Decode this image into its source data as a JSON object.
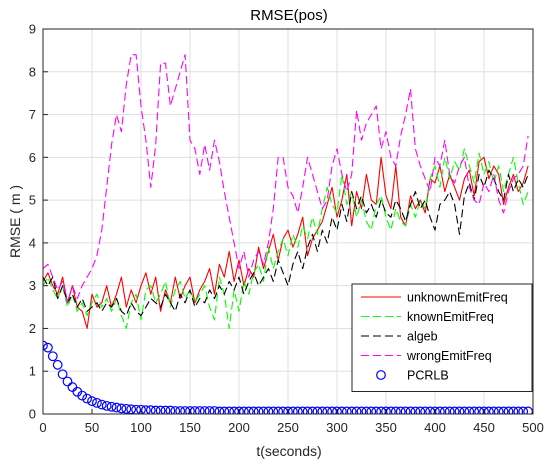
{
  "chart_data": {
    "type": "line",
    "title": "RMSE(pos)",
    "xlabel": "t(seconds)",
    "ylabel": "RMSE ( m )",
    "xlim": [
      0,
      500
    ],
    "ylim": [
      0,
      9
    ],
    "xticks": [
      0,
      50,
      100,
      150,
      200,
      250,
      300,
      350,
      400,
      450,
      500
    ],
    "yticks": [
      0,
      1,
      2,
      3,
      4,
      5,
      6,
      7,
      8,
      9
    ],
    "grid": true,
    "legend_position": "bottom-right",
    "series": [
      {
        "name": "unknownEmitFreq",
        "color": "#ff0000",
        "style": "solid",
        "x": [
          0,
          5,
          10,
          15,
          20,
          25,
          30,
          35,
          40,
          45,
          50,
          55,
          60,
          65,
          70,
          75,
          80,
          85,
          90,
          95,
          100,
          105,
          110,
          115,
          120,
          125,
          130,
          135,
          140,
          145,
          150,
          155,
          160,
          165,
          170,
          175,
          180,
          185,
          190,
          195,
          200,
          205,
          210,
          215,
          220,
          225,
          230,
          235,
          240,
          245,
          250,
          255,
          260,
          265,
          270,
          275,
          280,
          285,
          290,
          295,
          300,
          305,
          310,
          315,
          320,
          325,
          330,
          335,
          340,
          345,
          350,
          355,
          360,
          365,
          370,
          375,
          380,
          385,
          390,
          395,
          400,
          405,
          410,
          415,
          420,
          425,
          430,
          435,
          440,
          445,
          450,
          455,
          460,
          465,
          470,
          475,
          480,
          485,
          490,
          495
        ],
        "y": [
          3.1,
          3.3,
          3.0,
          2.8,
          3.2,
          2.6,
          3.0,
          2.5,
          2.4,
          2.0,
          2.8,
          2.5,
          2.6,
          3.0,
          2.5,
          2.8,
          3.2,
          2.5,
          2.9,
          2.6,
          3.0,
          3.3,
          2.8,
          3.2,
          2.4,
          2.9,
          2.6,
          3.2,
          2.7,
          3.0,
          3.2,
          2.6,
          2.9,
          3.1,
          3.4,
          2.8,
          3.5,
          3.2,
          3.8,
          3.1,
          3.6,
          3.0,
          3.4,
          3.2,
          3.9,
          3.4,
          3.8,
          4.2,
          3.6,
          4.1,
          4.3,
          3.9,
          4.2,
          4.6,
          3.7,
          4.1,
          4.3,
          4.5,
          4.9,
          5.3,
          4.6,
          5.0,
          5.6,
          4.4,
          5.2,
          4.8,
          5.6,
          5.0,
          4.9,
          6.0,
          5.1,
          4.8,
          5.8,
          4.6,
          4.4,
          5.1,
          4.8,
          5.0,
          4.7,
          5.5,
          5.4,
          5.8,
          5.2,
          5.6,
          5.3,
          5.0,
          5.5,
          5.7,
          5.1,
          5.9,
          6.0,
          5.5,
          5.8,
          5.6,
          4.9,
          5.3,
          5.6,
          5.2,
          5.4,
          5.8
        ]
      },
      {
        "name": "knownEmitFreq",
        "color": "#00ff00",
        "style": "dashed",
        "x": [
          0,
          5,
          10,
          15,
          20,
          25,
          30,
          35,
          40,
          45,
          50,
          55,
          60,
          65,
          70,
          75,
          80,
          85,
          90,
          95,
          100,
          105,
          110,
          115,
          120,
          125,
          130,
          135,
          140,
          145,
          150,
          155,
          160,
          165,
          170,
          175,
          180,
          185,
          190,
          195,
          200,
          205,
          210,
          215,
          220,
          225,
          230,
          235,
          240,
          245,
          250,
          255,
          260,
          265,
          270,
          275,
          280,
          285,
          290,
          295,
          300,
          305,
          310,
          315,
          320,
          325,
          330,
          335,
          340,
          345,
          350,
          355,
          360,
          365,
          370,
          375,
          380,
          385,
          390,
          395,
          400,
          405,
          410,
          415,
          420,
          425,
          430,
          435,
          440,
          445,
          450,
          455,
          460,
          465,
          470,
          475,
          480,
          485,
          490,
          495
        ],
        "y": [
          3.0,
          3.2,
          2.9,
          2.7,
          3.0,
          2.5,
          2.8,
          2.4,
          2.6,
          2.3,
          2.6,
          2.8,
          2.5,
          2.7,
          2.4,
          2.7,
          2.3,
          2.0,
          2.6,
          2.8,
          2.2,
          2.9,
          3.0,
          2.6,
          2.8,
          3.1,
          2.5,
          2.9,
          3.1,
          2.7,
          2.9,
          2.6,
          2.8,
          3.0,
          2.5,
          2.2,
          3.2,
          2.8,
          2.0,
          2.9,
          2.4,
          3.1,
          2.8,
          3.3,
          3.5,
          3.1,
          3.9,
          3.4,
          3.8,
          4.1,
          3.7,
          4.2,
          3.9,
          4.4,
          4.1,
          4.6,
          4.2,
          4.8,
          5.3,
          4.9,
          4.7,
          5.6,
          4.9,
          5.2,
          4.6,
          5.0,
          4.5,
          4.3,
          4.9,
          5.1,
          4.6,
          4.3,
          4.8,
          4.5,
          4.4,
          4.9,
          4.6,
          5.0,
          4.8,
          5.5,
          5.8,
          5.3,
          6.0,
          5.5,
          5.9,
          5.7,
          6.2,
          5.8,
          5.4,
          6.1,
          5.6,
          5.9,
          5.4,
          5.8,
          5.2,
          5.6,
          6.0,
          5.4,
          4.9,
          5.2
        ]
      },
      {
        "name": "algeb",
        "color": "#000000",
        "style": "dashed",
        "x": [
          0,
          5,
          10,
          15,
          20,
          25,
          30,
          35,
          40,
          45,
          50,
          55,
          60,
          65,
          70,
          75,
          80,
          85,
          90,
          95,
          100,
          105,
          110,
          115,
          120,
          125,
          130,
          135,
          140,
          145,
          150,
          155,
          160,
          165,
          170,
          175,
          180,
          185,
          190,
          195,
          200,
          205,
          210,
          215,
          220,
          225,
          230,
          235,
          240,
          245,
          250,
          255,
          260,
          265,
          270,
          275,
          280,
          285,
          290,
          295,
          300,
          305,
          310,
          315,
          320,
          325,
          330,
          335,
          340,
          345,
          350,
          355,
          360,
          365,
          370,
          375,
          380,
          385,
          390,
          395,
          400,
          405,
          410,
          415,
          420,
          425,
          430,
          435,
          440,
          445,
          450,
          455,
          460,
          465,
          470,
          475,
          480,
          485,
          490,
          495
        ],
        "y": [
          3.2,
          3.0,
          3.2,
          2.7,
          3.0,
          2.6,
          2.8,
          2.5,
          2.7,
          2.4,
          2.5,
          2.6,
          2.4,
          2.6,
          2.5,
          2.7,
          2.4,
          2.3,
          2.6,
          2.4,
          2.3,
          2.5,
          2.7,
          2.6,
          2.5,
          2.8,
          2.6,
          2.4,
          2.8,
          2.6,
          2.9,
          2.5,
          2.7,
          2.6,
          2.9,
          2.7,
          3.0,
          2.8,
          3.1,
          2.9,
          3.2,
          2.8,
          3.1,
          3.3,
          3.0,
          3.2,
          3.4,
          3.1,
          3.6,
          3.3,
          3.0,
          3.5,
          3.8,
          3.4,
          3.9,
          4.2,
          3.8,
          4.3,
          4.0,
          4.6,
          4.3,
          4.9,
          4.5,
          5.2,
          4.8,
          5.1,
          4.7,
          4.9,
          4.6,
          5.0,
          4.7,
          4.6,
          5.0,
          4.8,
          4.5,
          4.9,
          5.2,
          4.8,
          5.0,
          4.6,
          4.3,
          4.9,
          5.0,
          5.2,
          4.9,
          4.2,
          5.1,
          5.4,
          5.0,
          5.6,
          5.3,
          5.7,
          5.5,
          5.2,
          5.0,
          5.6,
          5.2,
          5.5,
          5.3,
          5.6
        ]
      },
      {
        "name": "wrongEmitFreq",
        "color": "#ff00ff",
        "style": "dashed",
        "x": [
          0,
          5,
          10,
          15,
          20,
          25,
          30,
          35,
          40,
          45,
          50,
          55,
          60,
          65,
          70,
          75,
          80,
          85,
          90,
          95,
          100,
          105,
          110,
          115,
          120,
          125,
          130,
          135,
          140,
          145,
          150,
          155,
          160,
          165,
          170,
          175,
          180,
          185,
          190,
          195,
          200,
          205,
          210,
          215,
          220,
          225,
          230,
          235,
          240,
          245,
          250,
          255,
          260,
          265,
          270,
          275,
          280,
          285,
          290,
          295,
          300,
          305,
          310,
          315,
          320,
          325,
          330,
          335,
          340,
          345,
          350,
          355,
          360,
          365,
          370,
          375,
          380,
          385,
          390,
          395,
          400,
          405,
          410,
          415,
          420,
          425,
          430,
          435,
          440,
          445,
          450,
          455,
          460,
          465,
          470,
          475,
          480,
          485,
          490,
          495
        ],
        "y": [
          3.4,
          3.5,
          3.2,
          2.9,
          3.1,
          2.6,
          3.0,
          2.7,
          3.0,
          3.2,
          3.4,
          3.7,
          4.3,
          5.3,
          6.3,
          7.0,
          6.6,
          7.7,
          8.4,
          8.4,
          7.2,
          6.4,
          5.3,
          6.3,
          8.2,
          8.2,
          7.2,
          7.6,
          8.0,
          8.4,
          6.4,
          6.2,
          5.6,
          6.3,
          5.7,
          6.4,
          5.9,
          5.2,
          4.6,
          4.0,
          3.4,
          3.8,
          3.2,
          3.6,
          3.8,
          3.5,
          4.0,
          4.8,
          6.0,
          6.0,
          5.3,
          5.1,
          4.7,
          5.3,
          6.0,
          5.6,
          5.2,
          4.8,
          5.0,
          5.8,
          6.2,
          5.6,
          5.2,
          5.6,
          7.1,
          6.4,
          6.8,
          7.0,
          7.2,
          6.2,
          6.6,
          6.0,
          5.8,
          6.5,
          7.0,
          7.6,
          6.2,
          5.8,
          5.5,
          5.2,
          6.0,
          5.8,
          6.4,
          5.6,
          5.4,
          5.8,
          6.0,
          5.3,
          5.0,
          4.9,
          5.4,
          5.2,
          5.6,
          5.0,
          4.7,
          5.2,
          5.5,
          5.6,
          5.8,
          6.5
        ]
      },
      {
        "name": "PCRLB",
        "color": "#0000ff",
        "style": "markers",
        "marker": "circle",
        "x": [
          0,
          5,
          10,
          15,
          20,
          25,
          30,
          35,
          40,
          45,
          50,
          55,
          60,
          65,
          70,
          75,
          80,
          85,
          90,
          95,
          100,
          105,
          110,
          115,
          120,
          125,
          130,
          135,
          140,
          145,
          150,
          155,
          160,
          165,
          170,
          175,
          180,
          185,
          190,
          195,
          200,
          205,
          210,
          215,
          220,
          225,
          230,
          235,
          240,
          245,
          250,
          255,
          260,
          265,
          270,
          275,
          280,
          285,
          290,
          295,
          300,
          305,
          310,
          315,
          320,
          325,
          330,
          335,
          340,
          345,
          350,
          355,
          360,
          365,
          370,
          375,
          380,
          385,
          390,
          395,
          400,
          405,
          410,
          415,
          420,
          425,
          430,
          435,
          440,
          445,
          450,
          455,
          460,
          465,
          470,
          475,
          480,
          485,
          490,
          495
        ],
        "y": [
          1.6,
          1.55,
          1.35,
          1.15,
          0.93,
          0.76,
          0.63,
          0.52,
          0.43,
          0.36,
          0.3,
          0.26,
          0.22,
          0.19,
          0.17,
          0.15,
          0.13,
          0.12,
          0.11,
          0.1,
          0.1,
          0.09,
          0.09,
          0.08,
          0.08,
          0.08,
          0.08,
          0.07,
          0.07,
          0.07,
          0.07,
          0.07,
          0.07,
          0.07,
          0.07,
          0.07,
          0.06,
          0.06,
          0.06,
          0.06,
          0.06,
          0.06,
          0.06,
          0.06,
          0.06,
          0.06,
          0.06,
          0.06,
          0.06,
          0.06,
          0.06,
          0.06,
          0.06,
          0.06,
          0.06,
          0.06,
          0.06,
          0.06,
          0.06,
          0.06,
          0.06,
          0.06,
          0.06,
          0.06,
          0.06,
          0.06,
          0.06,
          0.06,
          0.06,
          0.06,
          0.06,
          0.06,
          0.06,
          0.06,
          0.06,
          0.06,
          0.06,
          0.06,
          0.06,
          0.06,
          0.06,
          0.06,
          0.06,
          0.06,
          0.06,
          0.06,
          0.06,
          0.06,
          0.06,
          0.06,
          0.06,
          0.06,
          0.06,
          0.06,
          0.06,
          0.06,
          0.06,
          0.06,
          0.06,
          0.06
        ]
      }
    ]
  }
}
